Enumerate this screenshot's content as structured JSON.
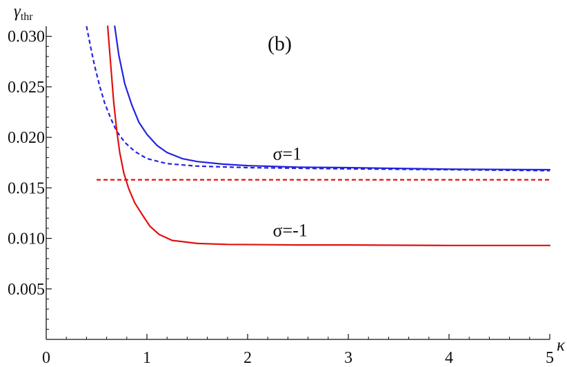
{
  "chart_data": {
    "type": "line",
    "panel_label": "(b)",
    "ylabel": "γ",
    "ylabel_sub": "thr",
    "xlabel": "κ",
    "xlim": [
      0,
      5
    ],
    "ylim": [
      0,
      0.031
    ],
    "x_ticks": [
      {
        "v": 0,
        "label": "0"
      },
      {
        "v": 1,
        "label": "1"
      },
      {
        "v": 2,
        "label": "2"
      },
      {
        "v": 3,
        "label": "3"
      },
      {
        "v": 4,
        "label": "4"
      },
      {
        "v": 5,
        "label": "5"
      }
    ],
    "y_ticks": [
      {
        "v": 0.005,
        "label": "0.005"
      },
      {
        "v": 0.01,
        "label": "0.010"
      },
      {
        "v": 0.015,
        "label": "0.015"
      },
      {
        "v": 0.02,
        "label": "0.020"
      },
      {
        "v": 0.025,
        "label": "0.025"
      },
      {
        "v": 0.03,
        "label": "0.030"
      }
    ],
    "grid": false,
    "series": [
      {
        "color": "#2222e0",
        "dash": false,
        "x": [
          0.68,
          0.72,
          0.78,
          0.85,
          0.92,
          1.0,
          1.1,
          1.2,
          1.35,
          1.5,
          1.75,
          2.0,
          2.5,
          3.0,
          4.0,
          5.0
        ],
        "y": [
          0.031,
          0.0282,
          0.0253,
          0.0232,
          0.0215,
          0.0203,
          0.0192,
          0.0185,
          0.0179,
          0.0176,
          0.01735,
          0.0172,
          0.01705,
          0.017,
          0.01685,
          0.0168
        ]
      },
      {
        "color": "#2222e0",
        "dash": true,
        "x": [
          0.4,
          0.44,
          0.48,
          0.53,
          0.58,
          0.64,
          0.7,
          0.78,
          0.88,
          1.0,
          1.2,
          1.5,
          2.0,
          3.0,
          4.0,
          5.0
        ],
        "y": [
          0.031,
          0.029,
          0.0271,
          0.0251,
          0.0234,
          0.0219,
          0.0206,
          0.0195,
          0.0186,
          0.0179,
          0.0174,
          0.01715,
          0.017,
          0.01688,
          0.0168,
          0.0167
        ]
      },
      {
        "color": "#e01010",
        "dash": false,
        "x": [
          0.61,
          0.63,
          0.65,
          0.67,
          0.7,
          0.73,
          0.77,
          0.82,
          0.88,
          0.95,
          1.03,
          1.12,
          1.25,
          1.5,
          1.8,
          2.5,
          3.0,
          4.0,
          5.0
        ],
        "y": [
          0.031,
          0.0285,
          0.026,
          0.0235,
          0.0207,
          0.0185,
          0.0165,
          0.0149,
          0.0135,
          0.0124,
          0.0112,
          0.0104,
          0.0098,
          0.0095,
          0.0094,
          0.00935,
          0.00935,
          0.0093,
          0.0093
        ]
      },
      {
        "color": "#e01010",
        "dash": true,
        "x": [
          0.5,
          5.0
        ],
        "y": [
          0.0158,
          0.0158
        ]
      }
    ],
    "annotations": [
      {
        "text": "σ=1",
        "x": 2.25,
        "y": 0.0178
      },
      {
        "text": "σ=-1",
        "x": 2.25,
        "y": 0.0102
      }
    ]
  }
}
